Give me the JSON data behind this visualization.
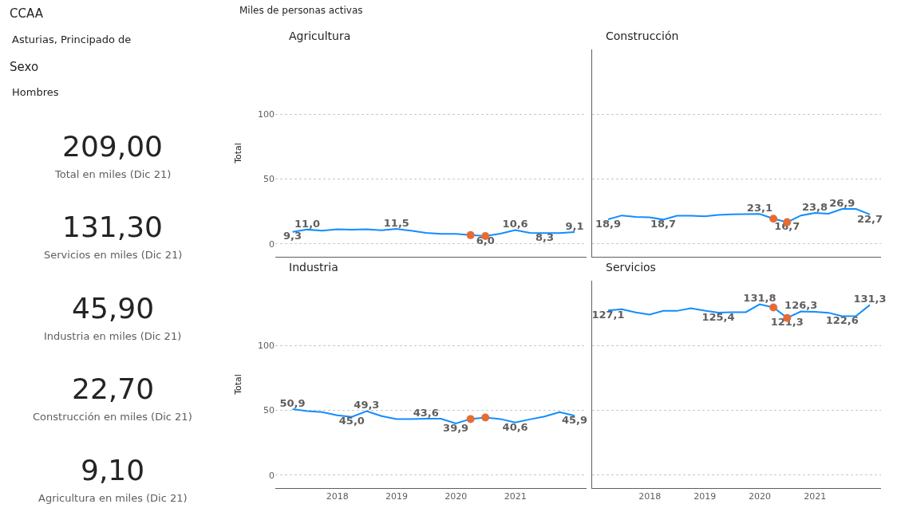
{
  "chart_data": [
    {
      "type": "other",
      "annotations": [
        "CCAA",
        "Asturias, Principado de",
        "Sexo",
        "Hombres",
        "209,00",
        "Total en miles (Dic 21)",
        "131,30",
        "Servicios en miles (Dic 21)",
        "45,90",
        "Industria en miles (Dic 21)",
        "22,70",
        "Construcción en miles (Dic 21)",
        "9,10",
        "Agricultura en miles (Dic 21)"
      ]
    },
    {
      "type": "line",
      "title": "Agricultura",
      "ylabel": "Total",
      "annotations": [
        "Miles de personas activas"
      ],
      "x": [
        "2017-03-31",
        "2017-06-30",
        "2017-09-30",
        "2017-12-31",
        "2018-03-31",
        "2018-06-30",
        "2018-09-30",
        "2018-12-31",
        "2019-03-31",
        "2019-06-30",
        "2019-09-30",
        "2019-12-31",
        "2020-03-31",
        "2020-06-30",
        "2020-09-30",
        "2020-12-31",
        "2021-03-31",
        "2021-06-30",
        "2021-09-30",
        "2021-12-31"
      ],
      "series": [
        {
          "type": "line",
          "color": "#118dff",
          "values": [
            9.3,
            11.0,
            10.1,
            11.2,
            10.9,
            11.2,
            10.5,
            11.5,
            10.1,
            8.5,
            7.7,
            7.7,
            6.7,
            6.0,
            7.9,
            10.6,
            8.5,
            8.3,
            8.3,
            9.1
          ],
          "value_labels": [
            "9,3",
            "11,0",
            null,
            null,
            null,
            null,
            null,
            "11,5",
            null,
            null,
            null,
            null,
            null,
            "6,0",
            null,
            "10,6",
            null,
            "8,3",
            null,
            "9,1"
          ]
        },
        {
          "type": "scatter",
          "color": "#e66c37",
          "marker": "circle",
          "values": [
            null,
            null,
            null,
            null,
            null,
            null,
            null,
            null,
            null,
            null,
            null,
            null,
            6.7,
            6.0,
            null,
            null,
            null,
            null,
            null,
            null
          ]
        }
      ],
      "xlim": [
        "2016-12-15",
        "2022-03-15"
      ],
      "xticks": [
        "2018",
        "2019",
        "2020",
        "2021"
      ],
      "ylim": [
        -10,
        150
      ],
      "yticks": [
        0,
        50,
        100
      ],
      "grid": "y",
      "tick_labels": "y"
    },
    {
      "type": "line",
      "title": "Construcción",
      "x": [
        "2017-03-31",
        "2017-06-30",
        "2017-09-30",
        "2017-12-31",
        "2018-03-31",
        "2018-06-30",
        "2018-09-30",
        "2018-12-31",
        "2019-03-31",
        "2019-06-30",
        "2019-09-30",
        "2019-12-31",
        "2020-03-31",
        "2020-06-30",
        "2020-09-30",
        "2020-12-31",
        "2021-03-31",
        "2021-06-30",
        "2021-09-30",
        "2021-12-31"
      ],
      "series": [
        {
          "type": "line",
          "color": "#118dff",
          "values": [
            18.9,
            21.9,
            20.8,
            20.4,
            18.7,
            21.7,
            21.7,
            21.3,
            22.3,
            22.7,
            23.0,
            23.1,
            19.4,
            16.7,
            21.9,
            23.8,
            23.3,
            26.9,
            26.9,
            22.7
          ],
          "value_labels": [
            "18,9",
            null,
            null,
            null,
            "18,7",
            null,
            null,
            null,
            null,
            null,
            null,
            "23,1",
            null,
            "16,7",
            null,
            "23,8",
            null,
            "26,9",
            null,
            "22,7"
          ]
        },
        {
          "type": "scatter",
          "color": "#e66c37",
          "marker": "circle",
          "values": [
            null,
            null,
            null,
            null,
            null,
            null,
            null,
            null,
            null,
            null,
            null,
            null,
            19.4,
            16.7,
            null,
            null,
            null,
            null,
            null,
            null
          ]
        }
      ],
      "xlim": [
        "2016-12-15",
        "2022-03-15"
      ],
      "xticks": [
        "2018",
        "2019",
        "2020",
        "2021"
      ],
      "ylim": [
        -10,
        150
      ],
      "yticks": [
        0,
        50,
        100
      ],
      "grid": "y",
      "tick_labels": false
    },
    {
      "type": "line",
      "title": "Industria",
      "ylabel": "Total",
      "x": [
        "2017-03-31",
        "2017-06-30",
        "2017-09-30",
        "2017-12-31",
        "2018-03-31",
        "2018-06-30",
        "2018-09-30",
        "2018-12-31",
        "2019-03-31",
        "2019-06-30",
        "2019-09-30",
        "2019-12-31",
        "2020-03-31",
        "2020-06-30",
        "2020-09-30",
        "2020-12-31",
        "2021-03-31",
        "2021-06-30",
        "2021-09-30",
        "2021-12-31"
      ],
      "series": [
        {
          "type": "line",
          "color": "#118dff",
          "values": [
            50.9,
            49.4,
            48.6,
            46.1,
            45.0,
            49.3,
            45.5,
            43.3,
            43.3,
            43.6,
            43.5,
            39.9,
            43.3,
            44.5,
            43.3,
            40.6,
            43.0,
            45.2,
            48.6,
            45.9
          ],
          "value_labels": [
            "50,9",
            null,
            null,
            null,
            "45,0",
            "49,3",
            null,
            null,
            null,
            "43,6",
            null,
            "39,9",
            null,
            null,
            null,
            "40,6",
            null,
            null,
            null,
            "45,9"
          ]
        },
        {
          "type": "scatter",
          "color": "#e66c37",
          "marker": "circle",
          "values": [
            null,
            null,
            null,
            null,
            null,
            null,
            null,
            null,
            null,
            null,
            null,
            null,
            43.3,
            44.5,
            null,
            null,
            null,
            null,
            null,
            null
          ]
        }
      ],
      "xlim": [
        "2016-12-15",
        "2022-03-15"
      ],
      "xticks": [
        "2018",
        "2019",
        "2020",
        "2021"
      ],
      "ylim": [
        -10,
        150
      ],
      "yticks": [
        0,
        50,
        100
      ],
      "grid": "y"
    },
    {
      "type": "line",
      "title": "Servicios",
      "x": [
        "2017-03-31",
        "2017-06-30",
        "2017-09-30",
        "2017-12-31",
        "2018-03-31",
        "2018-06-30",
        "2018-09-30",
        "2018-12-31",
        "2019-03-31",
        "2019-06-30",
        "2019-09-30",
        "2019-12-31",
        "2020-03-31",
        "2020-06-30",
        "2020-09-30",
        "2020-12-31",
        "2021-03-31",
        "2021-06-30",
        "2021-09-30",
        "2021-12-31"
      ],
      "series": [
        {
          "type": "line",
          "color": "#118dff",
          "values": [
            127.1,
            128.0,
            125.5,
            123.9,
            126.7,
            126.7,
            128.8,
            126.9,
            125.4,
            125.7,
            125.7,
            131.8,
            129.4,
            121.3,
            126.3,
            126.0,
            125.3,
            122.6,
            122.8,
            131.3
          ],
          "value_labels": [
            "127,1",
            null,
            null,
            null,
            null,
            null,
            null,
            null,
            "125,4",
            null,
            null,
            "131,8",
            null,
            "121,3",
            "126,3",
            null,
            null,
            "122,6",
            null,
            "131,3"
          ]
        },
        {
          "type": "scatter",
          "color": "#e66c37",
          "marker": "circle",
          "values": [
            null,
            null,
            null,
            null,
            null,
            null,
            null,
            null,
            null,
            null,
            null,
            null,
            129.4,
            121.3,
            null,
            null,
            null,
            null,
            null,
            null
          ]
        }
      ],
      "xlim": [
        "2016-12-15",
        "2022-03-15"
      ],
      "xticks": [
        "2018",
        "2019",
        "2020",
        "2021"
      ],
      "ylim": [
        -10,
        150
      ],
      "yticks": [
        0,
        50,
        100
      ],
      "grid": "y",
      "tick_labels": "x"
    }
  ]
}
